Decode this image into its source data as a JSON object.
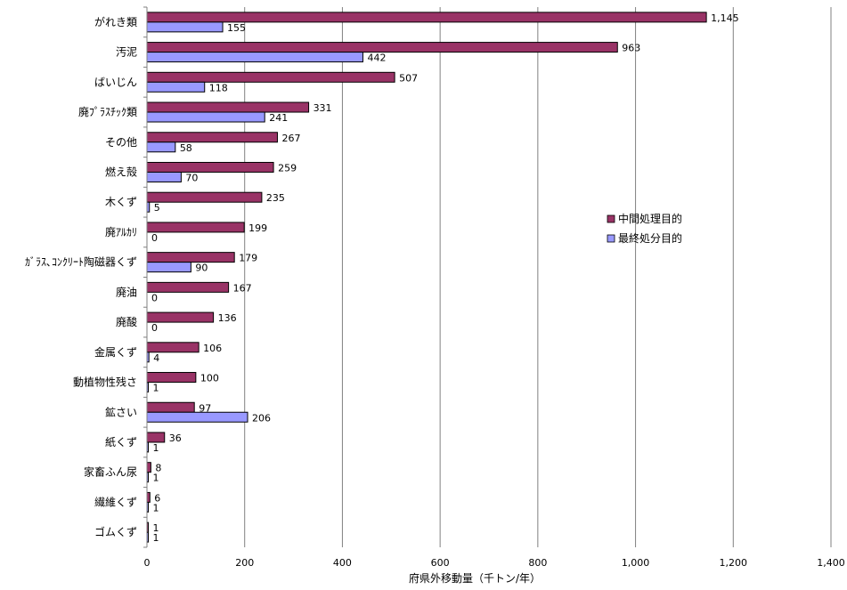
{
  "chart_data": {
    "type": "bar",
    "orientation": "horizontal",
    "title": "",
    "xlabel": "府県外移動量（千トン/年）",
    "ylabel": "",
    "xlim": [
      0,
      1400
    ],
    "x_ticks": [
      0,
      200,
      400,
      600,
      800,
      1000,
      1200,
      1400
    ],
    "x_tick_labels": [
      "0",
      "200",
      "400",
      "600",
      "800",
      "1,000",
      "1,200",
      "1,400"
    ],
    "grid": true,
    "legend_position": "right",
    "categories": [
      "がれき類",
      "汚泥",
      "ばいじん",
      "廃ﾌﾟﾗｽﾁｯｸ類",
      "その他",
      "燃え殻",
      "木くず",
      "廃ｱﾙｶﾘ",
      "ｶﾞﾗｽ､ｺﾝｸﾘｰﾄ陶磁器くず",
      "廃油",
      "廃酸",
      "金属くず",
      "動植物性残さ",
      "鉱さい",
      "紙くず",
      "家畜ふん尿",
      "繊維くず",
      "ゴムくず"
    ],
    "series": [
      {
        "name": "中間処理目的",
        "color": "#993366",
        "values": [
          1145,
          963,
          507,
          331,
          267,
          259,
          235,
          199,
          179,
          167,
          136,
          106,
          100,
          97,
          36,
          8,
          6,
          1
        ],
        "labels": [
          "1,145",
          "963",
          "507",
          "331",
          "267",
          "259",
          "235",
          "199",
          "179",
          "167",
          "136",
          "106",
          "100",
          "97",
          "36",
          "8",
          "6",
          "1"
        ]
      },
      {
        "name": "最終処分目的",
        "color": "#9999ff",
        "values": [
          155,
          442,
          118,
          241,
          58,
          70,
          5,
          0,
          90,
          0,
          0,
          4,
          1,
          206,
          1,
          1,
          1,
          1
        ],
        "labels": [
          "155",
          "442",
          "118",
          "241",
          "58",
          "70",
          "5",
          "0",
          "90",
          "0",
          "0",
          "4",
          "1",
          "206",
          "1",
          "1",
          "1",
          "1"
        ]
      }
    ]
  }
}
